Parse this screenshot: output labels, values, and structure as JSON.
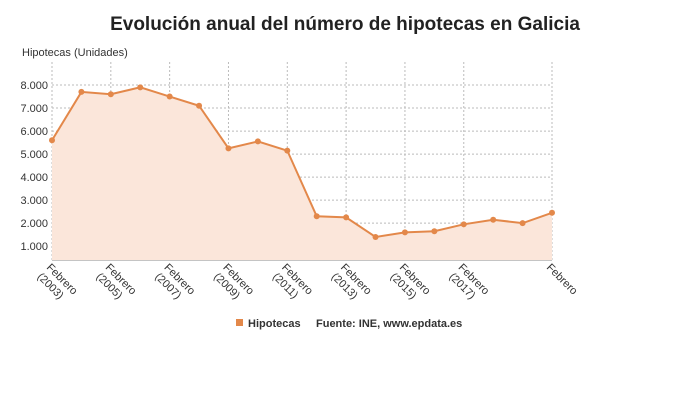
{
  "chart_data": {
    "type": "line",
    "title": "Evolución anual del número de hipotecas en Galicia",
    "y_label": "Hipotecas (Unidades)",
    "source": "Fuente: INE, www.epdata.es",
    "categories": [
      "Febrero (2003)",
      null,
      "Febrero (2005)",
      null,
      "Febrero (2007)",
      null,
      "Febrero (2009)",
      null,
      "Febrero (2011)",
      null,
      "Febrero (2013)",
      null,
      "Febrero (2015)",
      null,
      "Febrero (2017)",
      null,
      null,
      "Febrero"
    ],
    "series": [
      {
        "name": "Hipotecas",
        "color": "#e3884a",
        "fill": "#fbe6da",
        "values": [
          5600,
          7700,
          7600,
          7900,
          7500,
          7100,
          5250,
          5550,
          5150,
          2300,
          2250,
          1400,
          1600,
          1650,
          1950,
          2150,
          2000,
          2450
        ]
      }
    ],
    "ylim": [
      400,
      9000
    ],
    "yticks": [
      {
        "value": 1000,
        "label": "1.000"
      },
      {
        "value": 2000,
        "label": "2.000"
      },
      {
        "value": 3000,
        "label": "3.000"
      },
      {
        "value": 4000,
        "label": "4.000"
      },
      {
        "value": 5000,
        "label": "5.000"
      },
      {
        "value": 6000,
        "label": "6.000"
      },
      {
        "value": 7000,
        "label": "7.000"
      },
      {
        "value": 8000,
        "label": "8.000"
      }
    ],
    "grid": true
  }
}
